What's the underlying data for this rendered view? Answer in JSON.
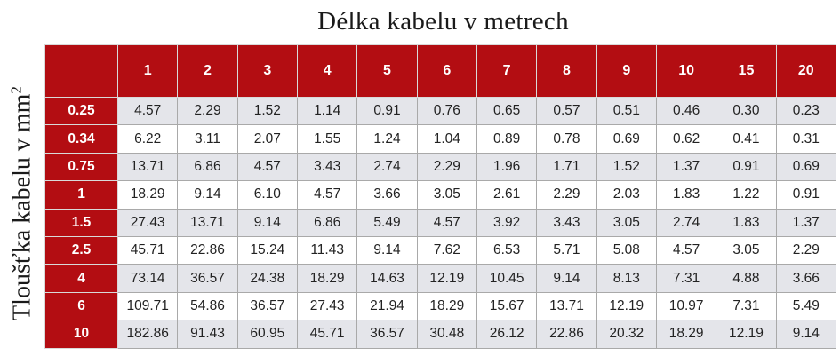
{
  "title": "Délka kabelu v metrech",
  "ylabel_text": "Tloušťka kabelu v mm",
  "ylabel_sup": "2",
  "colors": {
    "header_bg": "#b30d12",
    "row_alt": "#e4e5ea",
    "row_plain": "#ffffff"
  },
  "chart_data": {
    "type": "table",
    "title": "Délka kabelu v metrech",
    "ylabel": "Tloušťka kabelu v mm²",
    "columns": [
      "1",
      "2",
      "3",
      "4",
      "5",
      "6",
      "7",
      "8",
      "9",
      "10",
      "15",
      "20"
    ],
    "rows": [
      {
        "label": "0.25",
        "values": [
          "4.57",
          "2.29",
          "1.52",
          "1.14",
          "0.91",
          "0.76",
          "0.65",
          "0.57",
          "0.51",
          "0.46",
          "0.30",
          "0.23"
        ]
      },
      {
        "label": "0.34",
        "values": [
          "6.22",
          "3.11",
          "2.07",
          "1.55",
          "1.24",
          "1.04",
          "0.89",
          "0.78",
          "0.69",
          "0.62",
          "0.41",
          "0.31"
        ]
      },
      {
        "label": "0.75",
        "values": [
          "13.71",
          "6.86",
          "4.57",
          "3.43",
          "2.74",
          "2.29",
          "1.96",
          "1.71",
          "1.52",
          "1.37",
          "0.91",
          "0.69"
        ]
      },
      {
        "label": "1",
        "values": [
          "18.29",
          "9.14",
          "6.10",
          "4.57",
          "3.66",
          "3.05",
          "2.61",
          "2.29",
          "2.03",
          "1.83",
          "1.22",
          "0.91"
        ]
      },
      {
        "label": "1.5",
        "values": [
          "27.43",
          "13.71",
          "9.14",
          "6.86",
          "5.49",
          "4.57",
          "3.92",
          "3.43",
          "3.05",
          "2.74",
          "1.83",
          "1.37"
        ]
      },
      {
        "label": "2.5",
        "values": [
          "45.71",
          "22.86",
          "15.24",
          "11.43",
          "9.14",
          "7.62",
          "6.53",
          "5.71",
          "5.08",
          "4.57",
          "3.05",
          "2.29"
        ]
      },
      {
        "label": "4",
        "values": [
          "73.14",
          "36.57",
          "24.38",
          "18.29",
          "14.63",
          "12.19",
          "10.45",
          "9.14",
          "8.13",
          "7.31",
          "4.88",
          "3.66"
        ]
      },
      {
        "label": "6",
        "values": [
          "109.71",
          "54.86",
          "36.57",
          "27.43",
          "21.94",
          "18.29",
          "15.67",
          "13.71",
          "12.19",
          "10.97",
          "7.31",
          "5.49"
        ]
      },
      {
        "label": "10",
        "values": [
          "182.86",
          "91.43",
          "60.95",
          "45.71",
          "36.57",
          "30.48",
          "26.12",
          "22.86",
          "20.32",
          "18.29",
          "12.19",
          "9.14"
        ]
      }
    ]
  }
}
